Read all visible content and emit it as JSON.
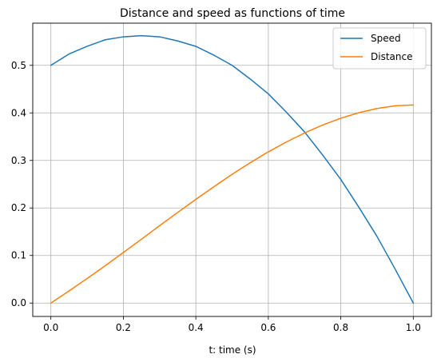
{
  "chart_data": {
    "type": "line",
    "title": "Distance and speed as functions of time",
    "xlabel": "t: time (s)",
    "ylabel": "",
    "xlim": [
      -0.05,
      1.05
    ],
    "ylim": [
      -0.0282,
      0.5887
    ],
    "x_ticks": [
      0.0,
      0.2,
      0.4,
      0.6,
      0.8,
      1.0
    ],
    "x_tick_labels": [
      "0.0",
      "0.2",
      "0.4",
      "0.6",
      "0.8",
      "1.0"
    ],
    "y_ticks": [
      0.0,
      0.1,
      0.2,
      0.3,
      0.4,
      0.5
    ],
    "y_tick_labels": [
      "0.0",
      "0.1",
      "0.2",
      "0.3",
      "0.4",
      "0.5"
    ],
    "grid": true,
    "legend_position": "top-right",
    "x": [
      0.0,
      0.05,
      0.1,
      0.15,
      0.2,
      0.25,
      0.3,
      0.35,
      0.4,
      0.45,
      0.5,
      0.55,
      0.6,
      0.65,
      0.7,
      0.75,
      0.8,
      0.85,
      0.9,
      0.95,
      1.0
    ],
    "series": [
      {
        "name": "Speed",
        "color": "#1f77b4",
        "values": [
          0.5,
          0.5238,
          0.54,
          0.5538,
          0.56,
          0.5625,
          0.56,
          0.5513,
          0.54,
          0.5213,
          0.5,
          0.4713,
          0.44,
          0.4013,
          0.36,
          0.3113,
          0.26,
          0.2013,
          0.14,
          0.0713,
          0.0
        ]
      },
      {
        "name": "Distance",
        "color": "#ff7f0e",
        "values": [
          0.0,
          0.0254,
          0.0516,
          0.0785,
          0.1063,
          0.1343,
          0.1628,
          0.1906,
          0.2181,
          0.2447,
          0.2708,
          0.2951,
          0.318,
          0.3389,
          0.3578,
          0.3745,
          0.3888,
          0.4004,
          0.4093,
          0.4149,
          0.4167
        ]
      }
    ]
  }
}
